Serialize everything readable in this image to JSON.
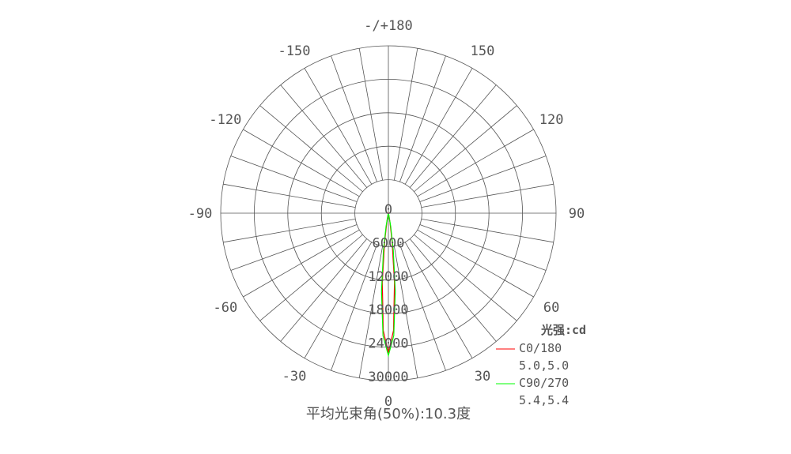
{
  "chart_data": {
    "type": "polar",
    "title": "平均光束角(50%):10.3度",
    "unit_label": "光强:cd",
    "radial_range": [
      0,
      30000
    ],
    "radial_ticks": [
      "0",
      "6000",
      "12000",
      "18000",
      "24000",
      "30000"
    ],
    "radial_tick_values": [
      0,
      6000,
      12000,
      18000,
      24000,
      30000
    ],
    "angle_zero": "bottom",
    "angle_grid_step_deg": 10,
    "angle_labels": [
      {
        "angle": 0,
        "text": "0"
      },
      {
        "angle": 30,
        "text": "30"
      },
      {
        "angle": 60,
        "text": "60"
      },
      {
        "angle": 90,
        "text": "90"
      },
      {
        "angle": 120,
        "text": "120"
      },
      {
        "angle": 150,
        "text": "150"
      },
      {
        "angle": 180,
        "text": "-/+180"
      },
      {
        "angle": -150,
        "text": "-150"
      },
      {
        "angle": -120,
        "text": "-120"
      },
      {
        "angle": -90,
        "text": "-90"
      },
      {
        "angle": -60,
        "text": "-60"
      },
      {
        "angle": -30,
        "text": "-30"
      }
    ],
    "grid": true,
    "legend_placement": "bottom-right",
    "angles": [
      -20,
      -15,
      -12.5,
      -10,
      -7.5,
      -5,
      -2.5,
      0,
      2.5,
      5,
      7.5,
      10,
      12.5,
      15,
      20
    ],
    "series": [
      {
        "name": "C0/180",
        "beam": "5.0,5.0",
        "color": "#ff0000",
        "values": [
          0,
          49,
          333,
          1560,
          5250,
          12500,
          21030,
          25000,
          21030,
          12500,
          5250,
          1560,
          333,
          49,
          0
        ]
      },
      {
        "name": "C90/270",
        "beam": "5.4,5.4",
        "color": "#00ff00",
        "values": [
          0,
          120,
          620,
          2370,
          6700,
          14080,
          21980,
          25500,
          21980,
          14080,
          6700,
          2370,
          620,
          120,
          0
        ]
      }
    ]
  },
  "colors": {
    "grid": "#555555",
    "text": "#555555"
  }
}
